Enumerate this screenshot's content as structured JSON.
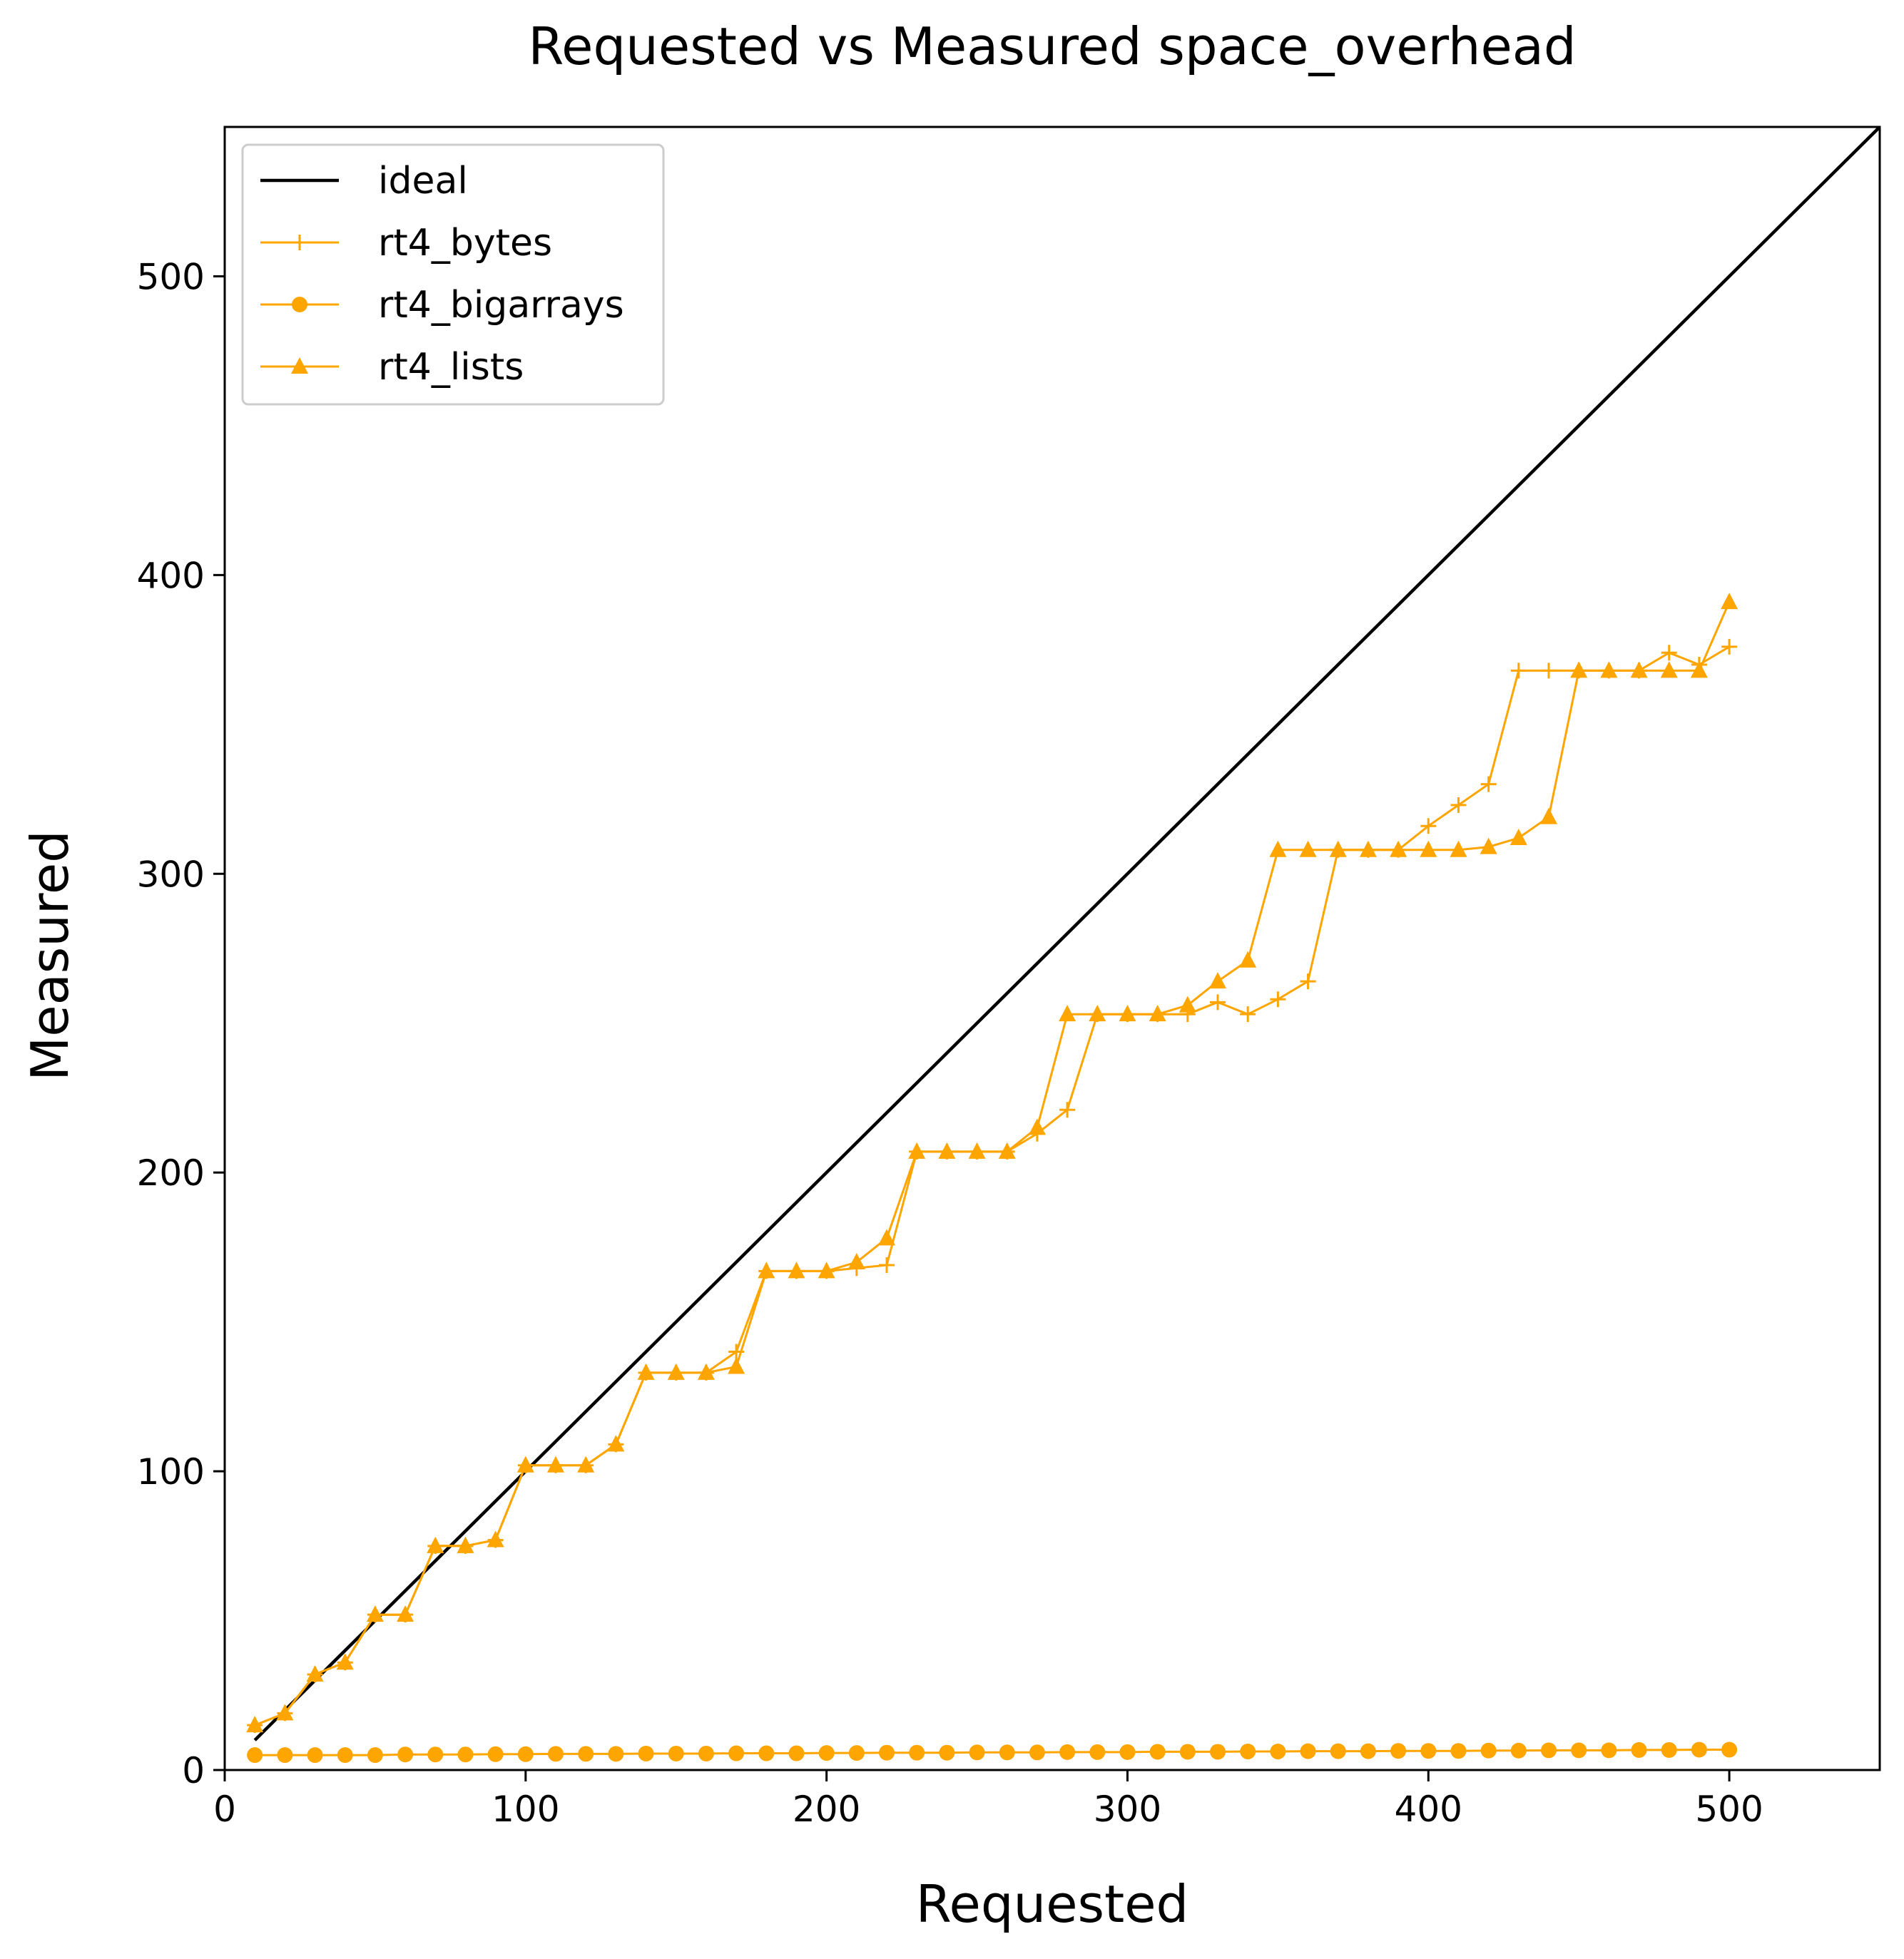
{
  "chart_data": {
    "type": "line",
    "title": "Requested vs Measured space_overhead",
    "xlabel": "Requested",
    "ylabel": "Measured",
    "xlim": [
      0,
      550
    ],
    "ylim": [
      0,
      550
    ],
    "xticks": [
      0,
      100,
      200,
      300,
      400,
      500
    ],
    "yticks": [
      0,
      100,
      200,
      300,
      400,
      500
    ],
    "grid": false,
    "legend_position": "top-left",
    "x": [
      10,
      20,
      30,
      40,
      50,
      60,
      70,
      80,
      90,
      100,
      110,
      120,
      130,
      140,
      150,
      160,
      170,
      180,
      190,
      200,
      210,
      220,
      230,
      240,
      250,
      260,
      270,
      280,
      290,
      300,
      310,
      320,
      330,
      340,
      350,
      360,
      370,
      380,
      390,
      400,
      410,
      420,
      430,
      440,
      450,
      460,
      470,
      480,
      490,
      500
    ],
    "series": [
      {
        "name": "ideal",
        "color": "#000000",
        "marker": "none",
        "x": [
          10,
          550
        ],
        "values": [
          10,
          550
        ]
      },
      {
        "name": "rt4_bytes",
        "color": "#FFA500",
        "marker": "plus",
        "values": [
          15,
          19,
          32,
          36,
          52,
          52,
          75,
          75,
          77,
          102,
          102,
          102,
          109,
          133,
          133,
          133,
          140,
          167,
          167,
          167,
          168,
          169,
          207,
          207,
          207,
          207,
          213,
          221,
          253,
          253,
          253,
          253,
          257,
          253,
          258,
          264,
          308,
          308,
          308,
          316,
          323,
          330,
          368,
          368,
          368,
          368,
          368,
          374,
          370,
          376
        ]
      },
      {
        "name": "rt4_bigarrays",
        "color": "#FFA500",
        "marker": "circle",
        "values": [
          5,
          5,
          5,
          5,
          5,
          5.2,
          5.2,
          5.2,
          5.3,
          5.3,
          5.4,
          5.4,
          5.4,
          5.5,
          5.5,
          5.5,
          5.6,
          5.6,
          5.6,
          5.7,
          5.7,
          5.8,
          5.8,
          5.8,
          5.9,
          5.9,
          5.9,
          6,
          6,
          6,
          6.1,
          6.1,
          6.1,
          6.2,
          6.2,
          6.3,
          6.3,
          6.3,
          6.4,
          6.4,
          6.4,
          6.5,
          6.5,
          6.6,
          6.6,
          6.6,
          6.7,
          6.7,
          6.8,
          6.8
        ]
      },
      {
        "name": "rt4_lists",
        "color": "#FFA500",
        "marker": "triangle",
        "values": [
          15,
          19,
          32,
          36,
          52,
          52,
          75,
          75,
          77,
          102,
          102,
          102,
          109,
          133,
          133,
          133,
          135,
          167,
          167,
          167,
          170,
          178,
          207,
          207,
          207,
          207,
          215,
          253,
          253,
          253,
          253,
          256,
          264,
          271,
          308,
          308,
          308,
          308,
          308,
          308,
          308,
          309,
          312,
          319,
          368,
          368,
          368,
          368,
          368,
          391
        ]
      }
    ]
  }
}
